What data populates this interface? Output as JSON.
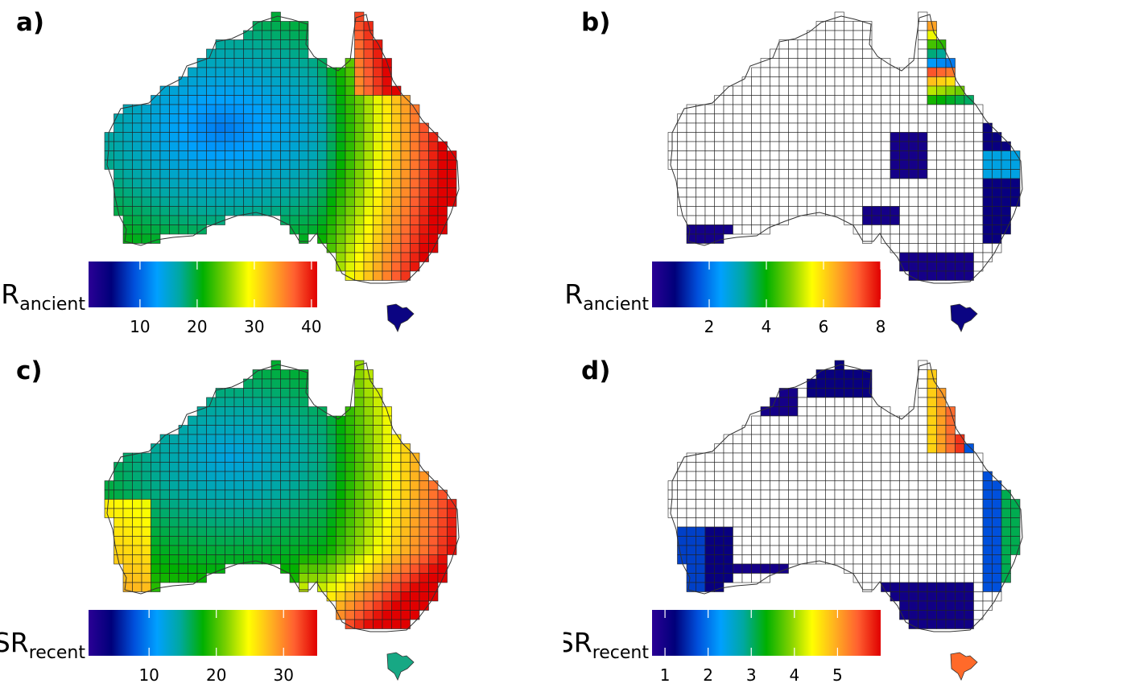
{
  "panels": [
    {
      "label": "a)",
      "legend": {
        "title_main": "SR",
        "title_sub": "ancient",
        "ticks": [
          {
            "label": "10",
            "value": 10
          },
          {
            "label": "20",
            "value": 20
          },
          {
            "label": "30",
            "value": 30
          },
          {
            "label": "40",
            "value": 40
          }
        ],
        "min": 1,
        "max": 41
      },
      "tasmania_color": "#0b0482",
      "mode": "full"
    },
    {
      "label": "b)",
      "legend": {
        "title_main": "SR",
        "title_sub": "ancient",
        "ticks": [
          {
            "label": "2",
            "value": 2
          },
          {
            "label": "4",
            "value": 4
          },
          {
            "label": "6",
            "value": 6
          },
          {
            "label": "8",
            "value": 8
          }
        ],
        "min": 0,
        "max": 8
      },
      "tasmania_color": "#0b0482",
      "mode": "sparse_a"
    },
    {
      "label": "c)",
      "legend": {
        "title_main": "SR",
        "title_sub": "recent",
        "ticks": [
          {
            "label": "10",
            "value": 10
          },
          {
            "label": "20",
            "value": 20
          },
          {
            "label": "30",
            "value": 30
          }
        ],
        "min": 1,
        "max": 35
      },
      "tasmania_color": "#17a884",
      "mode": "full_recent"
    },
    {
      "label": "d)",
      "legend": {
        "title_main": "SR",
        "title_sub": "recent",
        "ticks": [
          {
            "label": "1",
            "value": 1
          },
          {
            "label": "2",
            "value": 2
          },
          {
            "label": "3",
            "value": 3
          },
          {
            "label": "4",
            "value": 4
          },
          {
            "label": "5",
            "value": 5
          }
        ],
        "min": 0.7,
        "max": 6
      },
      "tasmania_color": "#ff6a2a",
      "mode": "sparse_r"
    }
  ],
  "colormap": [
    "#2a0095",
    "#00007a",
    "#0050dc",
    "#00a0ff",
    "#00a8a0",
    "#00b000",
    "#7ad000",
    "#ffff00",
    "#ffb020",
    "#ff6030",
    "#e00000"
  ]
}
